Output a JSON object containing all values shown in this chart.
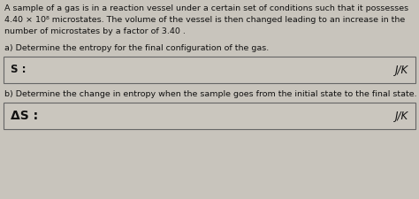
{
  "background_color": "#c8c4bc",
  "text_color": "#111111",
  "title_lines": [
    "A sample of a gas is in a reaction vessel under a certain set of conditions such that it possesses",
    "4.40 × 10⁸ microstates. The volume of the vessel is then changed leading to an increase in the",
    "number of microstates by a factor of 3.40 ."
  ],
  "part_a_label": "a) Determine the entropy for the final configuration of the gas.",
  "part_b_label": "b) Determine the change in entropy when the sample goes from the initial state to the final state.",
  "box_a_left": "S :",
  "box_a_right": "J/K",
  "box_b_left": "ΔS :",
  "box_b_right": "J/K",
  "box_bg": "#cac6be",
  "box_border": "#666666",
  "font_size_body": 6.8,
  "font_size_box_label": 8.5,
  "font_size_box_unit": 8.5
}
